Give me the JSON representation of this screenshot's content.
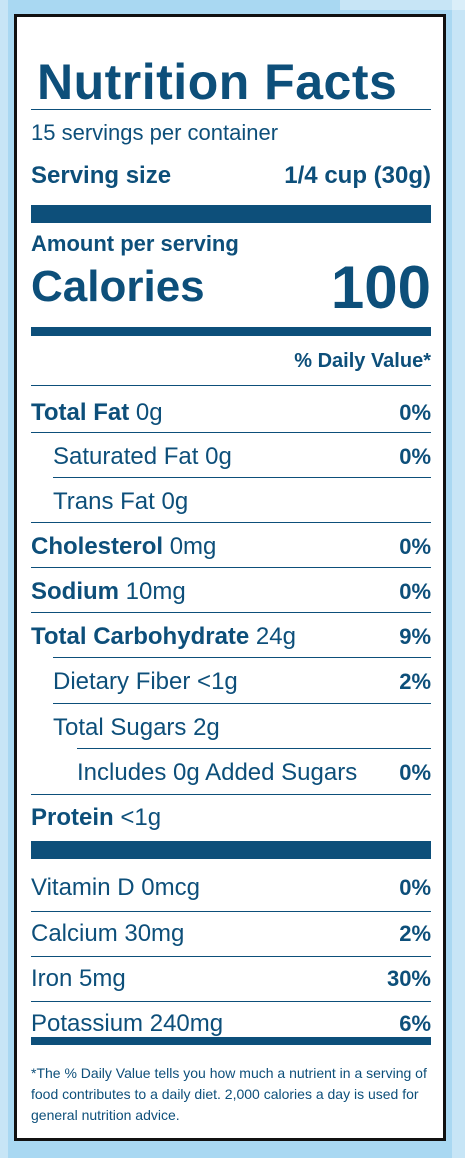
{
  "title": "Nutrition Facts",
  "servings_per_container": "15 servings per container",
  "serving_size": {
    "label": "Serving size",
    "value": "1/4 cup (30g)"
  },
  "amount_per_serving": "Amount per serving",
  "calories": {
    "label": "Calories",
    "value": "100"
  },
  "daily_value_header": "% Daily Value*",
  "nutrients": [
    {
      "label": "Total Fat",
      "amount": "0g",
      "dv": "0%"
    },
    {
      "label": "Saturated Fat",
      "amount": "0g",
      "dv": "0%"
    },
    {
      "label": "Trans Fat",
      "amount": "0g",
      "dv": ""
    },
    {
      "label": "Cholesterol",
      "amount": "0mg",
      "dv": "0%"
    },
    {
      "label": "Sodium",
      "amount": "10mg",
      "dv": "0%"
    },
    {
      "label": "Total Carbohydrate",
      "amount": "24g",
      "dv": "9%"
    },
    {
      "label": "Dietary Fiber",
      "amount": "<1g",
      "dv": "2%"
    },
    {
      "label": "Total Sugars",
      "amount": "2g",
      "dv": ""
    },
    {
      "label": "Includes 0g Added Sugars",
      "amount": "",
      "dv": "0%"
    },
    {
      "label": "Protein",
      "amount": "<1g",
      "dv": ""
    }
  ],
  "vitamins": [
    {
      "label": "Vitamin D",
      "amount": "0mcg",
      "dv": "0%"
    },
    {
      "label": "Calcium",
      "amount": "30mg",
      "dv": "2%"
    },
    {
      "label": "Iron",
      "amount": "5mg",
      "dv": "30%"
    },
    {
      "label": "Potassium",
      "amount": "240mg",
      "dv": "6%"
    }
  ],
  "footnote": "*The % Daily Value tells you how much a nutrient in a serving of food contributes to a daily diet. 2,000 calories a day is used for general nutrition advice.",
  "colors": {
    "text": "#0d4f7a",
    "background": "#a9d8f2",
    "panel": "#ffffff",
    "border": "#111111"
  }
}
